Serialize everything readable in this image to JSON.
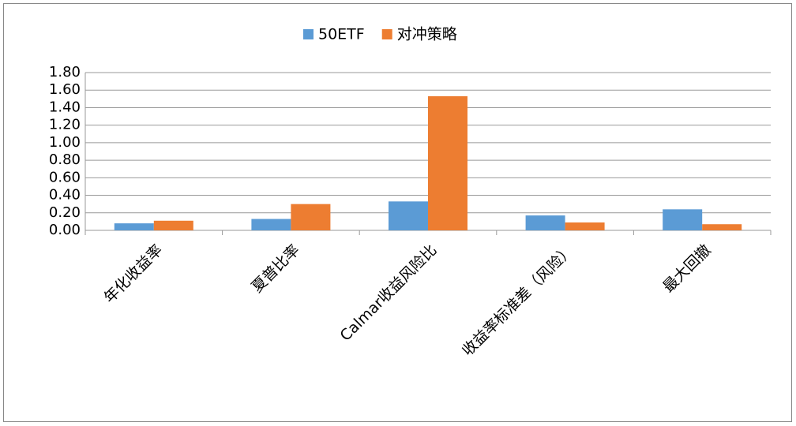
{
  "chart_data": {
    "type": "bar",
    "categories": [
      "年化收益率",
      "夏普比率",
      "Calmar收益风险比",
      "收益率标准差（风险）",
      "最大回撤"
    ],
    "series": [
      {
        "name": "50ETF",
        "color": "#5b9bd5",
        "values": [
          0.08,
          0.13,
          0.33,
          0.17,
          0.24
        ]
      },
      {
        "name": "对冲策略",
        "color": "#ed7d31",
        "values": [
          0.11,
          0.3,
          1.53,
          0.09,
          0.07
        ]
      }
    ],
    "ylim": [
      0,
      1.8
    ],
    "yticks": [
      {
        "value": 0,
        "label": "0.00"
      },
      {
        "value": 0.2,
        "label": "0.20"
      },
      {
        "value": 0.4,
        "label": "0.40"
      },
      {
        "value": 0.6,
        "label": "0.60"
      },
      {
        "value": 0.8,
        "label": "0.80"
      },
      {
        "value": 1.0,
        "label": "1.00"
      },
      {
        "value": 1.2,
        "label": "1.20"
      },
      {
        "value": 1.4,
        "label": "1.40"
      },
      {
        "value": 1.6,
        "label": "1.60"
      },
      {
        "value": 1.8,
        "label": "1.80"
      }
    ],
    "grid": true,
    "legend": "top"
  }
}
